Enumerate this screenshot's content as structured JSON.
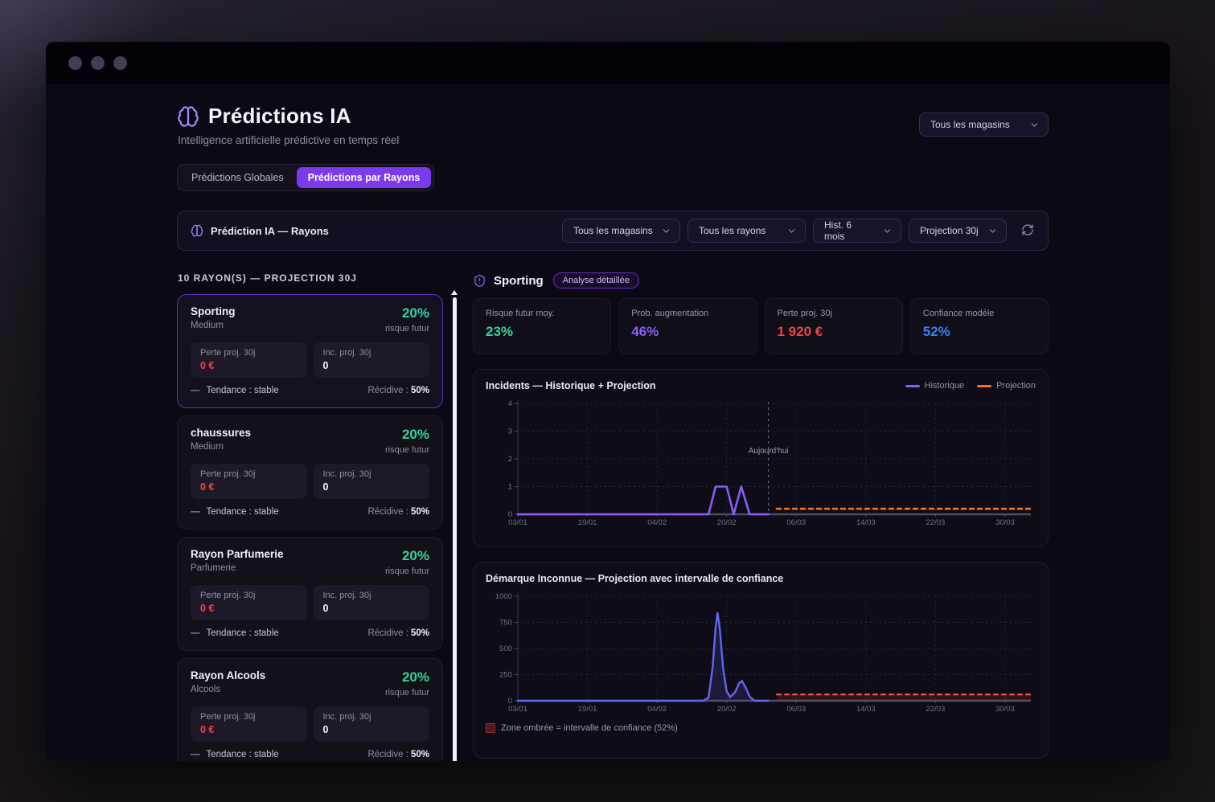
{
  "colors": {
    "accent": "#7c3aed",
    "green": "#34d399",
    "red": "#ef4444",
    "blue": "#3b82f6",
    "purple": "#8b5cf6",
    "orange": "#f97316"
  },
  "icons": {
    "trend_stable": "—"
  },
  "header": {
    "title": "Prédictions IA",
    "subtitle": "Intelligence artificielle prédictive en temps réel",
    "store_filter": "Tous les magasins"
  },
  "tabs": [
    {
      "label": "Prédictions Globales",
      "active": false
    },
    {
      "label": "Prédictions par Rayons",
      "active": true
    }
  ],
  "toolbar": {
    "title": "Prédiction IA — Rayons",
    "filters": [
      "Tous les magasins",
      "Tous les rayons",
      "Hist. 6 mois",
      "Projection 30j"
    ]
  },
  "rayons": {
    "header": "10 RAYON(S) — PROJECTION 30J",
    "cards": [
      {
        "name": "Sporting",
        "category": "Medium",
        "risk": "20%",
        "risk_label": "risque futur",
        "loss_label": "Perte proj. 30j",
        "loss": "0 €",
        "incidents_label": "Inc. proj. 30j",
        "incidents": "0",
        "trend": "Tendance : stable",
        "recurrence_label": "Récidive :",
        "recurrence": "50%"
      },
      {
        "name": "chaussures",
        "category": "Medium",
        "risk": "20%",
        "risk_label": "risque futur",
        "loss_label": "Perte proj. 30j",
        "loss": "0 €",
        "incidents_label": "Inc. proj. 30j",
        "incidents": "0",
        "trend": "Tendance : stable",
        "recurrence_label": "Récidive :",
        "recurrence": "50%"
      },
      {
        "name": "Rayon Parfumerie",
        "category": "Parfumerie",
        "risk": "20%",
        "risk_label": "risque futur",
        "loss_label": "Perte proj. 30j",
        "loss": "0 €",
        "incidents_label": "Inc. proj. 30j",
        "incidents": "0",
        "trend": "Tendance : stable",
        "recurrence_label": "Récidive :",
        "recurrence": "50%"
      },
      {
        "name": "Rayon Alcools",
        "category": "Alcools",
        "risk": "20%",
        "risk_label": "risque futur",
        "loss_label": "Perte proj. 30j",
        "loss": "0 €",
        "incidents_label": "Inc. proj. 30j",
        "incidents": "0",
        "trend": "Tendance : stable",
        "recurrence_label": "Récidive :",
        "recurrence": "50%"
      }
    ]
  },
  "detail": {
    "title": "Sporting",
    "badge": "Analyse détaillée",
    "stats": [
      {
        "label": "Risque futur moy.",
        "value": "23%",
        "color": "#34d399"
      },
      {
        "label": "Prob. augmentation",
        "value": "46%",
        "color": "#8b5cf6"
      },
      {
        "label": "Perte proj. 30j",
        "value": "1 920 €",
        "color": "#ef4444"
      },
      {
        "label": "Confiance modèle",
        "value": "52%",
        "color": "#3b82f6"
      }
    ]
  },
  "chart_data": [
    {
      "type": "line",
      "title": "Incidents — Historique + Projection",
      "x_ticks": [
        "03/01",
        "19/01",
        "04/02",
        "20/02",
        "06/03",
        "14/03",
        "22/03",
        "30/03"
      ],
      "x_max": 7.37,
      "ylim": [
        0,
        4
      ],
      "y_ticks": [
        0,
        1,
        2,
        3,
        4
      ],
      "legend": [
        {
          "name": "Historique",
          "color": "#8b5cf6"
        },
        {
          "name": "Projection",
          "color": "#f97316"
        }
      ],
      "legend_position": "top-right",
      "grid": true,
      "annotation": {
        "label": "Aujourd'hui",
        "x": 3.6
      },
      "series": [
        {
          "name": "Historique",
          "color": "#8b5cf6",
          "width": 2.6,
          "points": [
            [
              0,
              0
            ],
            [
              2.74,
              0
            ],
            [
              2.84,
              1
            ],
            [
              3.0,
              1
            ],
            [
              3.1,
              0
            ],
            [
              3.21,
              1
            ],
            [
              3.33,
              0
            ],
            [
              3.6,
              0
            ]
          ]
        },
        {
          "name": "Projection",
          "color": "#f97316",
          "width": 2.6,
          "dashed": true,
          "points": [
            [
              3.72,
              0.2
            ],
            [
              7.37,
              0.2
            ]
          ]
        }
      ]
    },
    {
      "type": "line",
      "title": "Démarque Inconnue — Projection avec intervalle de confiance",
      "x_ticks": [
        "03/01",
        "19/01",
        "04/02",
        "20/02",
        "06/03",
        "14/03",
        "22/03",
        "30/03"
      ],
      "x_max": 7.37,
      "ylim": [
        0,
        1000
      ],
      "y_ticks": [
        0,
        250,
        500,
        750,
        1000
      ],
      "grid": true,
      "band": {
        "x0": 3.72,
        "x1": 7.37,
        "y_top": 55,
        "color": "rgba(239,68,68,0.16)"
      },
      "series": [
        {
          "name": "Historique",
          "color": "#6366f1",
          "width": 2.4,
          "fill": "rgba(99,102,241,0.16)",
          "points": [
            [
              0,
              0
            ],
            [
              2.66,
              0
            ],
            [
              2.74,
              30
            ],
            [
              2.8,
              330
            ],
            [
              2.84,
              700
            ],
            [
              2.87,
              840
            ],
            [
              2.9,
              700
            ],
            [
              2.95,
              300
            ],
            [
              3.0,
              90
            ],
            [
              3.05,
              35
            ],
            [
              3.12,
              80
            ],
            [
              3.18,
              170
            ],
            [
              3.22,
              190
            ],
            [
              3.27,
              130
            ],
            [
              3.33,
              40
            ],
            [
              3.4,
              0
            ],
            [
              3.6,
              0
            ]
          ]
        },
        {
          "name": "Projection",
          "color": "#ef4444",
          "width": 2.4,
          "dashed": true,
          "points": [
            [
              3.72,
              60
            ],
            [
              7.37,
              60
            ]
          ]
        }
      ],
      "note": "Zone ombrée = intervalle de confiance (52%)"
    }
  ]
}
